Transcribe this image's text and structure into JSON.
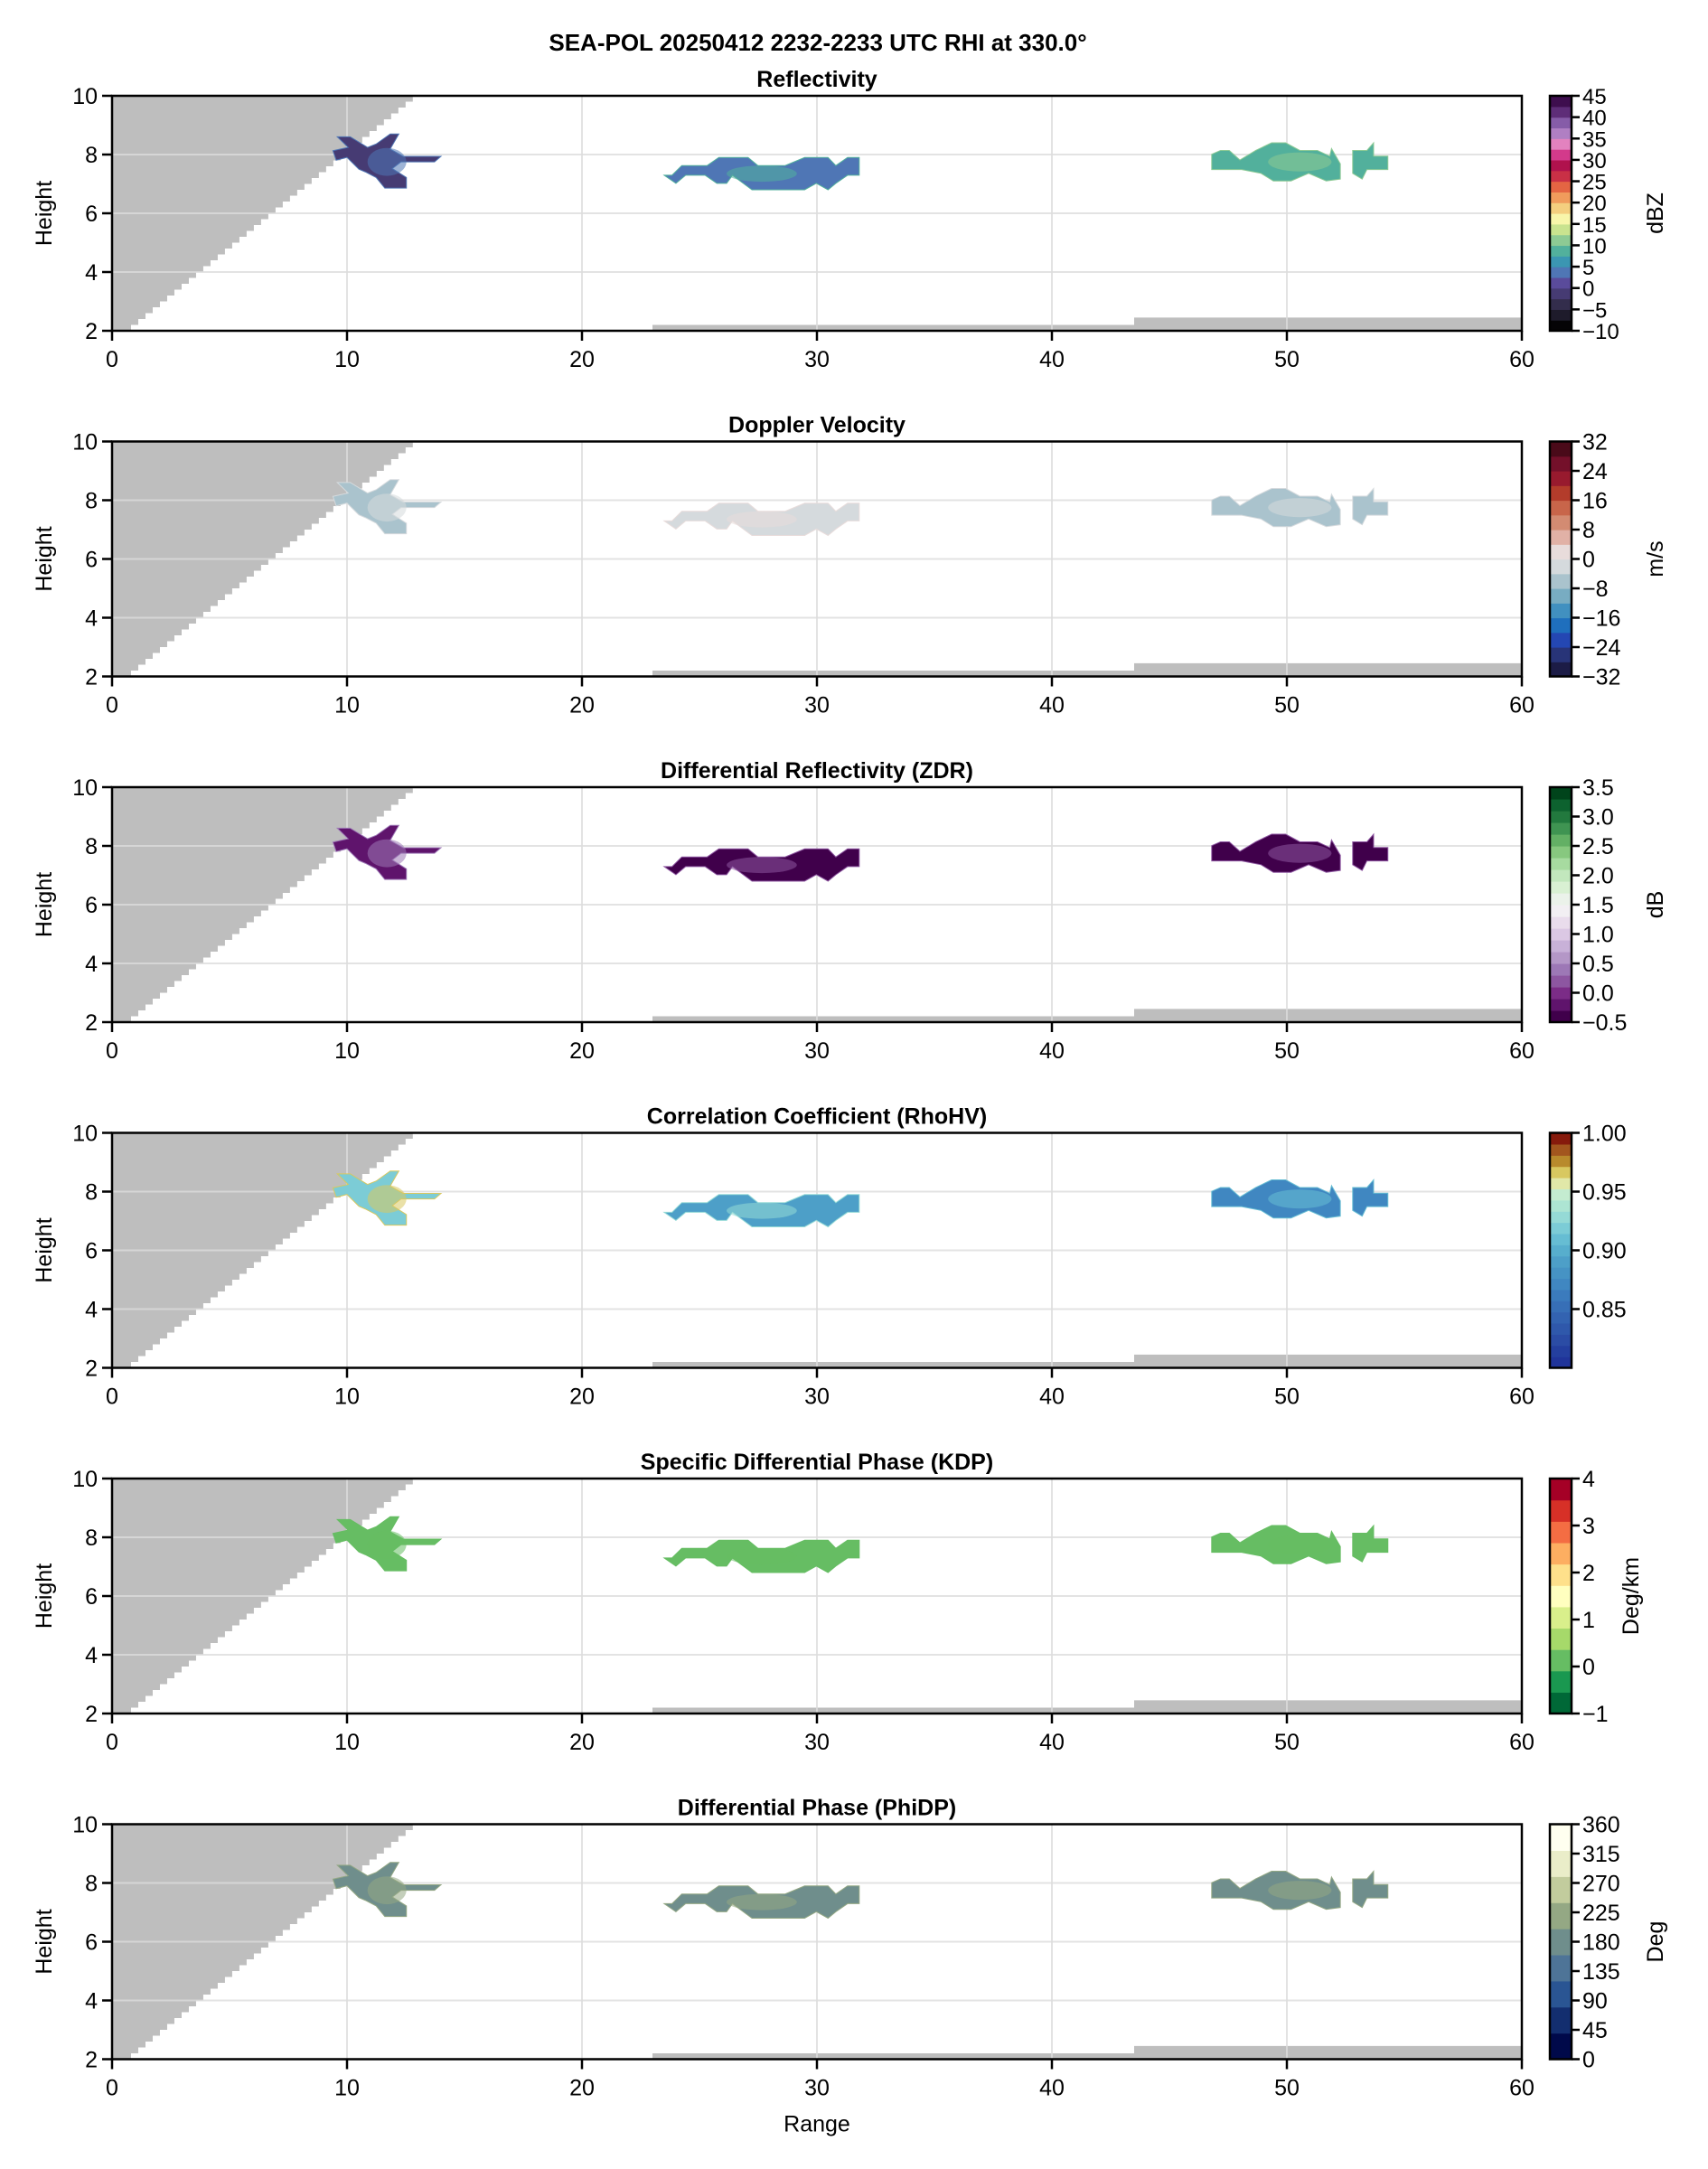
{
  "figure": {
    "suptitle": "SEA-POL 20250412 2232-2233 UTC RHI at 330.0°",
    "shared_xlabel": "Range",
    "background_color": "#ffffff",
    "blocked_color": "#bebebe",
    "grid_color": "#dcdcdc"
  },
  "chart_data": [
    {
      "type": "heatmap",
      "title": "Reflectivity",
      "xlabel": "",
      "ylabel": "Height",
      "xlim": [
        0,
        60
      ],
      "ylim": [
        2,
        10
      ],
      "xticks": [
        0,
        10,
        20,
        30,
        40,
        50,
        60
      ],
      "yticks": [
        2,
        4,
        6,
        8,
        10
      ],
      "grid": true,
      "colorbar": {
        "label": "dBZ",
        "range": [
          -10,
          45
        ],
        "ticks": [
          -10,
          -5,
          0,
          5,
          10,
          15,
          20,
          25,
          30,
          35,
          40,
          45
        ],
        "tick_labels": [
          "−10",
          "−5",
          "0",
          "5",
          "10",
          "15",
          "20",
          "25",
          "30",
          "35",
          "40",
          "45"
        ],
        "colors": [
          "#050406",
          "#1e1b2b",
          "#332d4c",
          "#463b73",
          "#5a4b9b",
          "#4f76b5",
          "#3b96b2",
          "#52b09c",
          "#8dca94",
          "#c9e38f",
          "#f8f6aa",
          "#f4cf7f",
          "#f09c5c",
          "#e46543",
          "#c93046",
          "#b0124d",
          "#d33a8b",
          "#e382bf",
          "#b07fc3",
          "#865ca8",
          "#5e2d78",
          "#3e0e4e"
        ]
      },
      "echoes": [
        {
          "region": "near",
          "range_km": [
            9.4,
            14.0
          ],
          "height_km": [
            6.8,
            8.7
          ],
          "value": -1,
          "value_range": [
            -8,
            3
          ]
        },
        {
          "region": "middle",
          "range_km": [
            23.5,
            31.8
          ],
          "height_km": [
            6.8,
            7.9
          ],
          "value": 4,
          "value_range": [
            0,
            9
          ]
        },
        {
          "region": "far",
          "range_km": [
            46.8,
            54.3
          ],
          "height_km": [
            7.1,
            8.4
          ],
          "value": 9,
          "value_range": [
            6,
            11
          ]
        }
      ]
    },
    {
      "type": "heatmap",
      "title": "Doppler Velocity",
      "xlabel": "",
      "ylabel": "Height",
      "xlim": [
        0,
        60
      ],
      "ylim": [
        2,
        10
      ],
      "xticks": [
        0,
        10,
        20,
        30,
        40,
        50,
        60
      ],
      "yticks": [
        2,
        4,
        6,
        8,
        10
      ],
      "grid": true,
      "colorbar": {
        "label": "m/s",
        "range": [
          -32,
          32
        ],
        "ticks": [
          -32,
          -24,
          -16,
          -8,
          0,
          8,
          16,
          24,
          32
        ],
        "tick_labels": [
          "−32",
          "−24",
          "−16",
          "−8",
          "0",
          "8",
          "16",
          "24",
          "32"
        ],
        "colors": [
          "#1c1c46",
          "#283478",
          "#2447b3",
          "#1f6fbd",
          "#4190c0",
          "#78acc2",
          "#aac3cd",
          "#d5dadd",
          "#e8dcdb",
          "#e1b1a6",
          "#d38b72",
          "#c8654a",
          "#b33c2b",
          "#981a2e",
          "#74102a",
          "#4a0a19"
        ]
      },
      "echoes": [
        {
          "region": "near",
          "range_km": [
            9.4,
            14.0
          ],
          "height_km": [
            6.8,
            8.7
          ],
          "value": -8,
          "value_range": [
            -12,
            -4
          ]
        },
        {
          "region": "middle",
          "range_km": [
            23.5,
            31.8
          ],
          "height_km": [
            6.8,
            7.9
          ],
          "value": -3,
          "value_range": [
            -8,
            0
          ]
        },
        {
          "region": "far",
          "range_km": [
            46.8,
            54.3
          ],
          "height_km": [
            7.1,
            8.4
          ],
          "value": -6,
          "value_range": [
            -8,
            -2
          ]
        }
      ]
    },
    {
      "type": "heatmap",
      "title": "Differential Reflectivity (ZDR)",
      "xlabel": "",
      "ylabel": "Height",
      "xlim": [
        0,
        60
      ],
      "ylim": [
        2,
        10
      ],
      "xticks": [
        0,
        10,
        20,
        30,
        40,
        50,
        60
      ],
      "yticks": [
        2,
        4,
        6,
        8,
        10
      ],
      "grid": true,
      "colorbar": {
        "label": "dB",
        "range": [
          -0.5,
          3.5
        ],
        "ticks": [
          -0.5,
          0.0,
          0.5,
          1.0,
          1.5,
          2.0,
          2.5,
          3.0,
          3.5
        ],
        "tick_labels": [
          "−0.5",
          "0.0",
          "0.5",
          "1.0",
          "1.5",
          "2.0",
          "2.5",
          "3.0",
          "3.5"
        ],
        "colors": [
          "#40004b",
          "#5f146c",
          "#7b2c87",
          "#8d56a1",
          "#9d78b6",
          "#b497c7",
          "#c8b1d8",
          "#dbc8e4",
          "#e9dcec",
          "#f2eff3",
          "#ebf2ea",
          "#d9f0d3",
          "#c2e7bd",
          "#a7dba0",
          "#87c87f",
          "#63b065",
          "#3f9452",
          "#22793e",
          "#0d622f",
          "#00441b"
        ]
      },
      "echoes": [
        {
          "region": "near",
          "range_km": [
            9.4,
            14.0
          ],
          "height_km": [
            6.8,
            8.7
          ],
          "value": -0.3,
          "value_range": [
            -0.5,
            0.3
          ]
        },
        {
          "region": "middle",
          "range_km": [
            23.5,
            31.8
          ],
          "height_km": [
            6.8,
            7.9
          ],
          "value": -0.4,
          "value_range": [
            -0.5,
            0.2
          ]
        },
        {
          "region": "far",
          "range_km": [
            46.8,
            54.3
          ],
          "height_km": [
            7.1,
            8.4
          ],
          "value": -0.4,
          "value_range": [
            -0.5,
            0.1
          ]
        }
      ]
    },
    {
      "type": "heatmap",
      "title": "Correlation Coefficient (RhoHV)",
      "xlabel": "",
      "ylabel": "Height",
      "xlim": [
        0,
        60
      ],
      "ylim": [
        2,
        10
      ],
      "xticks": [
        0,
        10,
        20,
        30,
        40,
        50,
        60
      ],
      "yticks": [
        2,
        4,
        6,
        8,
        10
      ],
      "grid": true,
      "colorbar": {
        "label": "",
        "range": [
          0.8,
          1.0
        ],
        "ticks": [
          0.85,
          0.9,
          0.95,
          1.0
        ],
        "tick_labels": [
          "0.85",
          "0.90",
          "0.95",
          "1.00"
        ],
        "colors": [
          "#20349a",
          "#243f9f",
          "#2b4ca5",
          "#2f58ab",
          "#3363b1",
          "#376fb7",
          "#3b7bbd",
          "#4087c1",
          "#4693c4",
          "#4d9fc8",
          "#57aecd",
          "#66bdd3",
          "#7cccd6",
          "#95dad6",
          "#ade5d3",
          "#c4ecd0",
          "#e1e8a8",
          "#d8c860",
          "#b88a2c",
          "#a2561e",
          "#861a0c"
        ]
      },
      "echoes": [
        {
          "region": "near",
          "range_km": [
            9.4,
            14.0
          ],
          "height_km": [
            6.8,
            8.7
          ],
          "value": 0.92,
          "value_range": [
            0.84,
            0.97
          ]
        },
        {
          "region": "middle",
          "range_km": [
            23.5,
            31.8
          ],
          "height_km": [
            6.8,
            7.9
          ],
          "value": 0.89,
          "value_range": [
            0.84,
            0.93
          ]
        },
        {
          "region": "far",
          "range_km": [
            46.8,
            54.3
          ],
          "height_km": [
            7.1,
            8.4
          ],
          "value": 0.87,
          "value_range": [
            0.82,
            0.91
          ]
        }
      ]
    },
    {
      "type": "heatmap",
      "title": "Specific Differential Phase (KDP)",
      "xlabel": "",
      "ylabel": "Height",
      "xlim": [
        0,
        60
      ],
      "ylim": [
        2,
        10
      ],
      "xticks": [
        0,
        10,
        20,
        30,
        40,
        50,
        60
      ],
      "yticks": [
        2,
        4,
        6,
        8,
        10
      ],
      "grid": true,
      "colorbar": {
        "label": "Deg/km",
        "range": [
          -1,
          4
        ],
        "ticks": [
          -1,
          0,
          1,
          2,
          3,
          4
        ],
        "tick_labels": [
          "−1",
          "0",
          "1",
          "2",
          "3",
          "4"
        ],
        "colors": [
          "#006837",
          "#1a9850",
          "#66bd63",
          "#a6d96a",
          "#d9ef8b",
          "#ffffbf",
          "#fee08b",
          "#fdae61",
          "#f46d43",
          "#d73027",
          "#a50026"
        ]
      },
      "echoes": [
        {
          "region": "near",
          "range_km": [
            9.4,
            14.0
          ],
          "height_km": [
            6.8,
            8.7
          ],
          "value": 0.2,
          "value_range": [
            0.1,
            0.3
          ]
        },
        {
          "region": "middle",
          "range_km": [
            23.5,
            31.8
          ],
          "height_km": [
            6.8,
            7.9
          ],
          "value": 0.2,
          "value_range": [
            0.1,
            0.3
          ]
        },
        {
          "region": "far",
          "range_km": [
            46.8,
            54.3
          ],
          "height_km": [
            7.1,
            8.4
          ],
          "value": 0.2,
          "value_range": [
            0.1,
            0.3
          ]
        }
      ]
    },
    {
      "type": "heatmap",
      "title": "Differential Phase (PhiDP)",
      "xlabel": "Range",
      "ylabel": "Height",
      "xlim": [
        0,
        60
      ],
      "ylim": [
        2,
        10
      ],
      "xticks": [
        0,
        10,
        20,
        30,
        40,
        50,
        60
      ],
      "yticks": [
        2,
        4,
        6,
        8,
        10
      ],
      "grid": true,
      "colorbar": {
        "label": "Deg",
        "range": [
          0,
          360
        ],
        "ticks": [
          0,
          45,
          90,
          135,
          180,
          225,
          270,
          315,
          360
        ],
        "tick_labels": [
          "0",
          "45",
          "90",
          "135",
          "180",
          "225",
          "270",
          "315",
          "360"
        ],
        "colors": [
          "#00094a",
          "#132e6f",
          "#2a5593",
          "#4e7497",
          "#6f8e8c",
          "#94a884",
          "#c2cc9d",
          "#eaedc9",
          "#fffff0"
        ]
      },
      "echoes": [
        {
          "region": "near",
          "range_km": [
            9.4,
            14.0
          ],
          "height_km": [
            6.8,
            8.7
          ],
          "value": 195,
          "value_range": [
            185,
            205
          ]
        },
        {
          "region": "middle",
          "range_km": [
            23.5,
            31.8
          ],
          "height_km": [
            6.8,
            7.9
          ],
          "value": 195,
          "value_range": [
            185,
            205
          ]
        },
        {
          "region": "far",
          "range_km": [
            46.8,
            54.3
          ],
          "height_km": [
            7.1,
            8.4
          ],
          "value": 195,
          "value_range": [
            185,
            205
          ]
        }
      ]
    }
  ],
  "masks": {
    "beam_blockage_wedge": {
      "range_at_bottom_km": 0.5,
      "range_at_top_km": 12.8,
      "height_km": [
        2,
        10
      ]
    },
    "ground_clutter": [
      {
        "range_km": [
          23.0,
          43.5
        ],
        "height_top_km": 2.2
      },
      {
        "range_km": [
          43.5,
          60.0
        ],
        "height_top_km": 2.45
      }
    ]
  }
}
